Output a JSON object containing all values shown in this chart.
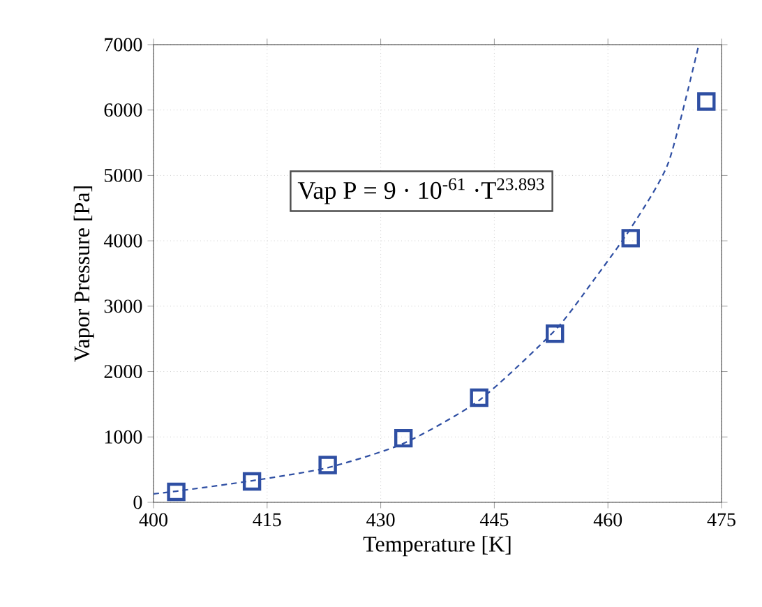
{
  "chart_data": {
    "type": "scatter",
    "xlabel": "Temperature [K]",
    "ylabel": "Vapor Pressure [Pa]",
    "xlim": [
      400,
      475
    ],
    "ylim": [
      0,
      7000
    ],
    "xticks": [
      400,
      415,
      430,
      445,
      460,
      475
    ],
    "yticks": [
      0,
      1000,
      2000,
      3000,
      4000,
      5000,
      6000,
      7000
    ],
    "grid": true,
    "series": [
      {
        "color": "#2f4fa3",
        "marker": "square",
        "x": [
          403,
          413,
          423,
          433,
          443,
          453,
          463,
          473
        ],
        "values": [
          160,
          320,
          570,
          980,
          1600,
          2580,
          4040,
          6130
        ]
      },
      {
        "type": "line",
        "color": "#2f4fa3",
        "line_style": "dashed",
        "x": [
          400,
          403,
          413,
          423,
          433,
          443,
          453,
          458,
          463,
          468,
          472
        ],
        "values": [
          130,
          170,
          330,
          530,
          900,
          1560,
          2630,
          3380,
          4190,
          5200,
          7000
        ]
      }
    ],
    "annotations": [
      "Vap P = 9 · 10$^{-61}$ ·T$^{23.893}$"
    ]
  }
}
